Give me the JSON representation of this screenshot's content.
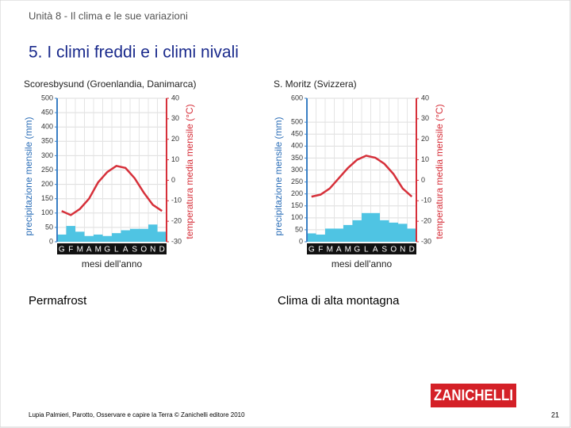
{
  "header": "Unità 8 - Il clima e le sue variazioni",
  "title": "5. I climi freddi e i climi nivali",
  "captions": [
    "Permafrost",
    "Clima di alta montagna"
  ],
  "footer": "Lupia Palmieri, Parotto, Osservare e capire la Terra © Zanichelli editore 2010",
  "logo": "ZANICHELLI",
  "page_number": "21",
  "chart_data": [
    {
      "type": "climograph",
      "title": "Scoresbysund (Groenlandia, Danimarca)",
      "categories": [
        "G",
        "F",
        "M",
        "A",
        "M",
        "G",
        "L",
        "A",
        "S",
        "O",
        "N",
        "D"
      ],
      "series": [
        {
          "color": "#4fc4e3",
          "values": [
            25,
            55,
            35,
            20,
            25,
            20,
            30,
            40,
            45,
            45,
            60,
            35
          ]
        },
        {
          "color": "#d6303a",
          "axis": "y2",
          "values": [
            -15,
            -17,
            -14,
            -9,
            -1,
            4,
            7,
            6,
            1,
            -6,
            -12,
            -15
          ]
        }
      ],
      "ylabel": "precipitazione mensile (mm)",
      "y2label": "temperatura media mensile (°C)",
      "xlabel": "mesi dell'anno",
      "ylim": [
        0,
        500
      ],
      "yticks": [
        0,
        50,
        100,
        150,
        200,
        250,
        300,
        350,
        400,
        450,
        500
      ],
      "y2lim": [
        -30,
        40
      ],
      "y2ticks": [
        -30,
        -20,
        -10,
        0,
        10,
        20,
        30,
        40
      ],
      "grid": true
    },
    {
      "type": "climograph",
      "title": "S. Moritz (Svizzera)",
      "categories": [
        "G",
        "F",
        "M",
        "A",
        "M",
        "G",
        "L",
        "A",
        "S",
        "O",
        "N",
        "D"
      ],
      "series": [
        {
          "color": "#4fc4e3",
          "values": [
            35,
            30,
            55,
            55,
            70,
            90,
            120,
            120,
            90,
            80,
            75,
            55
          ]
        },
        {
          "color": "#d6303a",
          "axis": "y2",
          "values": [
            -8,
            -7,
            -4,
            1,
            6,
            10,
            12,
            11,
            8,
            3,
            -4,
            -8
          ]
        }
      ],
      "ylabel": "precipitazione mensile (mm)",
      "y2label": "temperatura media mensile (°C)",
      "xlabel": "mesi dell'anno",
      "ylim": [
        0,
        600
      ],
      "yticks": [
        0,
        50,
        100,
        150,
        200,
        250,
        300,
        350,
        400,
        450,
        500,
        600
      ],
      "y2lim": [
        -30,
        40
      ],
      "y2ticks": [
        -30,
        -20,
        -10,
        0,
        10,
        20,
        30,
        40
      ],
      "grid": true
    }
  ]
}
